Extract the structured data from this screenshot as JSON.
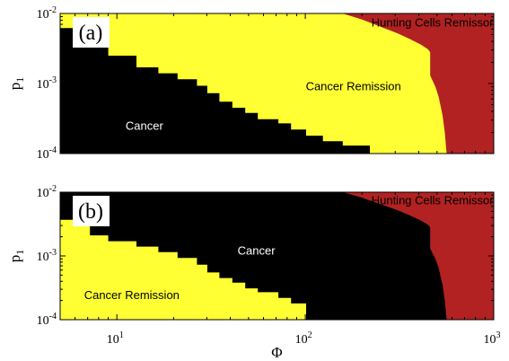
{
  "chart_data": {
    "type": "heatmap",
    "colors": {
      "cancer": "#000000",
      "cancer_remission": "#ffff33",
      "hunting_cells_remission": "#b22222"
    },
    "x_axis": {
      "label": "Φ",
      "scale": "log",
      "xlim": [
        5,
        1000
      ],
      "ticks": [
        {
          "value": 10,
          "base": "10",
          "exp": "1"
        },
        {
          "value": 100,
          "base": "10",
          "exp": "2"
        },
        {
          "value": 1000,
          "base": "10",
          "exp": "3"
        }
      ]
    },
    "panels": [
      {
        "tag": "(a)",
        "ylabel": "p",
        "ylabel_sub": "1",
        "yscale": "log",
        "ylim": [
          0.0001,
          0.01
        ],
        "yticks": [
          {
            "value": 0.01,
            "base": "10",
            "exp": "-2"
          },
          {
            "value": 0.001,
            "base": "10",
            "exp": "-3"
          },
          {
            "value": 0.0001,
            "base": "10",
            "exp": "-4"
          }
        ],
        "region_labels": [
          {
            "text": "Hunting Cells Remisson",
            "region": "hunting_cells_remission",
            "at": [
              480,
              0.0065
            ]
          },
          {
            "text": "Cancer Remission",
            "region": "cancer_remission",
            "at": [
              180,
              0.0008
            ]
          },
          {
            "text": "Cancer",
            "region": "cancer",
            "at": [
              14,
              0.00022
            ]
          }
        ],
        "fill": "cancer_remission",
        "regions": [
          {
            "class": "cancer",
            "boundary": [
              [
                5,
                0.0062
              ],
              [
                6.5,
                0.0062
              ],
              [
                6.5,
                0.0047
              ],
              [
                7.2,
                0.0047
              ],
              [
                7.2,
                0.0035
              ],
              [
                9,
                0.0035
              ],
              [
                9,
                0.0025
              ],
              [
                12.7,
                0.0025
              ],
              [
                12.7,
                0.0017
              ],
              [
                16.6,
                0.0017
              ],
              [
                16.6,
                0.0014
              ],
              [
                21,
                0.0014
              ],
              [
                21,
                0.00115
              ],
              [
                26.6,
                0.00115
              ],
              [
                26.6,
                0.00093
              ],
              [
                30.2,
                0.00093
              ],
              [
                30.2,
                0.00073
              ],
              [
                35,
                0.00073
              ],
              [
                35,
                0.00055
              ],
              [
                41,
                0.00055
              ],
              [
                41,
                0.00045
              ],
              [
                48,
                0.00045
              ],
              [
                48,
                0.00038
              ],
              [
                56,
                0.00038
              ],
              [
                56,
                0.00031
              ],
              [
                72,
                0.00031
              ],
              [
                72,
                0.00027
              ],
              [
                84,
                0.00027
              ],
              [
                84,
                0.00022
              ],
              [
                101,
                0.00022
              ],
              [
                101,
                0.00018
              ],
              [
                124,
                0.00018
              ],
              [
                124,
                0.00015
              ],
              [
                158,
                0.00015
              ],
              [
                158,
                0.00013
              ],
              [
                220,
                0.00013
              ],
              [
                220,
                0.0001
              ]
            ]
          },
          {
            "class": "hunting_cells_remission",
            "boundary": [
              [
                158,
                0.01
              ],
              [
                200,
                0.0082
              ],
              [
                250,
                0.0065
              ],
              [
                310,
                0.0052
              ],
              [
                360,
                0.0043
              ],
              [
                410,
                0.0036
              ],
              [
                447,
                0.0031
              ],
              [
                460,
                0.0028
              ],
              [
                460,
                0.0013
              ],
              [
                490,
                0.0009
              ],
              [
                510,
                0.00065
              ],
              [
                535,
                0.00035
              ],
              [
                550,
                0.0002
              ],
              [
                562,
                0.0001
              ]
            ]
          }
        ]
      },
      {
        "tag": "(b)",
        "ylabel": "p",
        "ylabel_sub": "1",
        "yscale": "log",
        "ylim": [
          0.0001,
          0.01
        ],
        "yticks": [
          {
            "value": 0.01,
            "base": "10",
            "exp": "-2"
          },
          {
            "value": 0.001,
            "base": "10",
            "exp": "-3"
          },
          {
            "value": 0.0001,
            "base": "10",
            "exp": "-4"
          }
        ],
        "region_labels": [
          {
            "text": "Hunting Cells Remisson",
            "region": "hunting_cells_remission",
            "at": [
              480,
              0.0065
            ]
          },
          {
            "text": "Cancer",
            "region": "cancer",
            "at": [
              55,
              0.00105
            ]
          },
          {
            "text": "Cancer Remission",
            "region": "cancer_remission",
            "at": [
              12,
              0.00021
            ]
          }
        ],
        "fill": "cancer",
        "regions": [
          {
            "class": "cancer_remission",
            "boundary": [
              [
                5,
                0.0037
              ],
              [
                6.5,
                0.0037
              ],
              [
                6.5,
                0.003
              ],
              [
                7.2,
                0.003
              ],
              [
                7.2,
                0.0021
              ],
              [
                9,
                0.0021
              ],
              [
                9,
                0.0017
              ],
              [
                12.7,
                0.0017
              ],
              [
                12.7,
                0.0014
              ],
              [
                16.6,
                0.0014
              ],
              [
                16.6,
                0.00115
              ],
              [
                21,
                0.00115
              ],
              [
                21,
                0.00093
              ],
              [
                26.6,
                0.00093
              ],
              [
                26.6,
                0.00073
              ],
              [
                30.2,
                0.00073
              ],
              [
                30.2,
                0.00055
              ],
              [
                35,
                0.00055
              ],
              [
                35,
                0.00045
              ],
              [
                41,
                0.00045
              ],
              [
                41,
                0.00038
              ],
              [
                48,
                0.00038
              ],
              [
                48,
                0.00031
              ],
              [
                56,
                0.00031
              ],
              [
                56,
                0.00027
              ],
              [
                72,
                0.00027
              ],
              [
                72,
                0.00022
              ],
              [
                84,
                0.00022
              ],
              [
                84,
                0.00018
              ],
              [
                101,
                0.00018
              ],
              [
                101,
                0.0001
              ]
            ]
          },
          {
            "class": "hunting_cells_remission",
            "boundary": [
              [
                158,
                0.01
              ],
              [
                200,
                0.0082
              ],
              [
                250,
                0.0065
              ],
              [
                310,
                0.0052
              ],
              [
                360,
                0.0043
              ],
              [
                410,
                0.0036
              ],
              [
                447,
                0.0031
              ],
              [
                460,
                0.0028
              ],
              [
                460,
                0.0013
              ],
              [
                490,
                0.0009
              ],
              [
                510,
                0.00065
              ],
              [
                535,
                0.00035
              ],
              [
                550,
                0.0002
              ],
              [
                562,
                0.0001
              ]
            ]
          }
        ]
      }
    ]
  }
}
